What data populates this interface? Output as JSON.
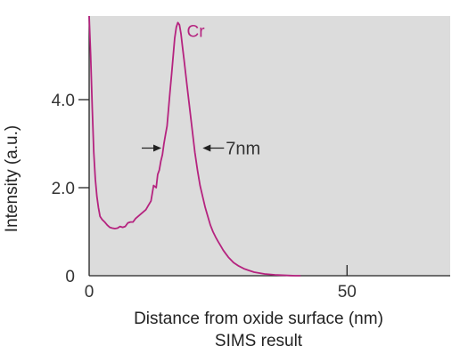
{
  "chart_data": {
    "type": "line",
    "xlabel": "Distance from oxide surface (nm)",
    "ylabel": "Intensity (a.u.)",
    "caption": "SIMS result",
    "xlim": [
      0,
      70
    ],
    "ylim": [
      0,
      5.9
    ],
    "x_ticks": [
      {
        "value": 0,
        "label": "0"
      },
      {
        "value": 50,
        "label": "50"
      }
    ],
    "y_ticks": [
      {
        "value": 0,
        "label": "0"
      },
      {
        "value": 2.0,
        "label": "2.0"
      },
      {
        "value": 4.0,
        "label": "4.0"
      }
    ],
    "grid": false,
    "background_color": "#dcdcdc",
    "series": [
      {
        "name": "Cr",
        "color": "#b5237f",
        "x": [
          0.0,
          0.3,
          0.6,
          0.9,
          1.2,
          1.5,
          1.8,
          2.1,
          2.5,
          3.0,
          3.5,
          4.0,
          4.5,
          5.0,
          5.5,
          6.0,
          6.5,
          7.0,
          7.5,
          8.0,
          8.5,
          9.0,
          9.5,
          10.0,
          10.5,
          11.0,
          11.5,
          12.0,
          12.5,
          13.0,
          13.3,
          13.6,
          13.9,
          14.2,
          14.5,
          14.8,
          15.1,
          15.4,
          15.7,
          16.0,
          16.3,
          16.6,
          16.9,
          17.2,
          17.5,
          17.8,
          18.1,
          18.4,
          18.7,
          19.0,
          19.5,
          20.0,
          20.5,
          21.0,
          21.5,
          22.0,
          22.5,
          23.0,
          23.5,
          24.0,
          24.5,
          25.0,
          25.5,
          26.0,
          26.5,
          27.0,
          28.0,
          29.0,
          30.0,
          31.0,
          32.0,
          33.0,
          34.0,
          35.0,
          36.0,
          37.0,
          38.0,
          39.0,
          40.0,
          41.0
        ],
        "y": [
          5.9,
          5.0,
          3.8,
          2.8,
          2.2,
          1.8,
          1.55,
          1.35,
          1.28,
          1.22,
          1.15,
          1.1,
          1.08,
          1.07,
          1.08,
          1.12,
          1.1,
          1.12,
          1.2,
          1.22,
          1.22,
          1.3,
          1.35,
          1.4,
          1.45,
          1.5,
          1.6,
          1.7,
          2.05,
          2.0,
          2.3,
          2.4,
          2.6,
          2.75,
          3.0,
          3.2,
          3.4,
          3.8,
          4.2,
          4.6,
          5.0,
          5.4,
          5.65,
          5.75,
          5.7,
          5.5,
          5.2,
          4.9,
          4.6,
          4.3,
          3.8,
          3.3,
          2.8,
          2.4,
          2.05,
          1.8,
          1.55,
          1.35,
          1.15,
          1.0,
          0.88,
          0.78,
          0.68,
          0.58,
          0.5,
          0.42,
          0.3,
          0.22,
          0.16,
          0.12,
          0.08,
          0.06,
          0.04,
          0.03,
          0.02,
          0.015,
          0.01,
          0.005,
          0.0,
          0.0
        ]
      }
    ],
    "annotations": [
      {
        "text": "",
        "type": "arrow-right",
        "x": 14.0,
        "y": 2.9
      },
      {
        "text": "7nm",
        "type": "arrow-left",
        "x": 22.0,
        "y": 2.9
      }
    ]
  }
}
